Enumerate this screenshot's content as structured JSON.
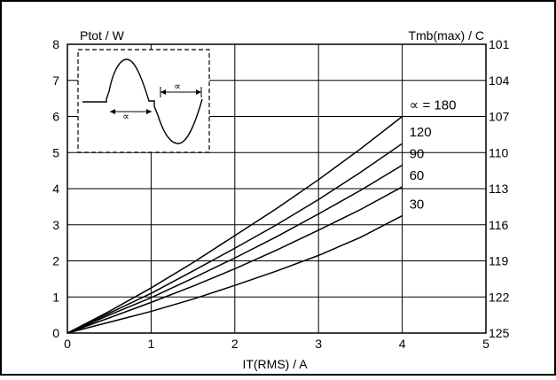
{
  "chart_data": {
    "type": "line",
    "title": "",
    "ylabel_left": "Ptot / W",
    "ylabel_right": "Tmb(max) / C",
    "xlabel": "IT(RMS) / A",
    "xlim": [
      0,
      5
    ],
    "ylim": [
      0,
      8
    ],
    "grid": true,
    "x_ticks": [
      "0",
      "1",
      "2",
      "3",
      "4",
      "5"
    ],
    "y_ticks": [
      "0",
      "1",
      "2",
      "3",
      "4",
      "5",
      "6",
      "7",
      "8"
    ],
    "right_ticks": [
      "125",
      "122",
      "119",
      "116",
      "113",
      "110",
      "107",
      "104",
      "101"
    ],
    "alpha_symbol": "∝",
    "series": [
      {
        "name": "∝ = 180",
        "x": [
          0,
          0.5,
          1,
          1.5,
          2,
          2.5,
          3,
          3.5,
          4
        ],
        "y": [
          0,
          0.6,
          1.25,
          1.95,
          2.7,
          3.45,
          4.25,
          5.1,
          6.0
        ]
      },
      {
        "name": "120",
        "x": [
          0,
          0.5,
          1,
          1.5,
          2,
          2.5,
          3,
          3.5,
          4
        ],
        "y": [
          0,
          0.55,
          1.1,
          1.72,
          2.35,
          3.0,
          3.7,
          4.45,
          5.25
        ]
      },
      {
        "name": "90",
        "x": [
          0,
          0.5,
          1,
          1.5,
          2,
          2.5,
          3,
          3.5,
          4
        ],
        "y": [
          0,
          0.5,
          0.98,
          1.52,
          2.08,
          2.67,
          3.3,
          3.95,
          4.65
        ]
      },
      {
        "name": "60",
        "x": [
          0,
          0.5,
          1,
          1.5,
          2,
          2.5,
          3,
          3.5,
          4
        ],
        "y": [
          0,
          0.42,
          0.85,
          1.3,
          1.78,
          2.3,
          2.85,
          3.42,
          4.05
        ]
      },
      {
        "name": "30",
        "x": [
          0,
          0.5,
          1,
          1.5,
          2,
          2.5,
          3,
          3.5,
          4
        ],
        "y": [
          0,
          0.3,
          0.6,
          0.94,
          1.32,
          1.72,
          2.15,
          2.65,
          3.25
        ]
      }
    ]
  }
}
